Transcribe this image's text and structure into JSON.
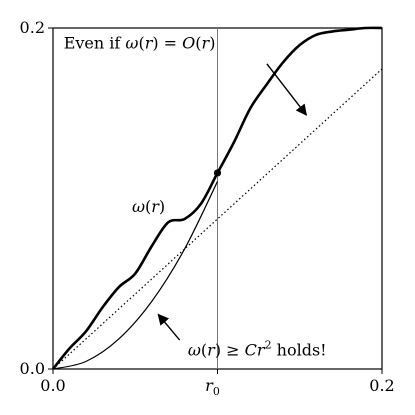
{
  "chart_data": {
    "type": "line",
    "xlim": [
      0.0,
      0.2
    ],
    "ylim": [
      0.0,
      0.2
    ],
    "grid": false,
    "x_ticks": [
      {
        "value": 0.0,
        "label": "0.0"
      },
      {
        "value": 0.2,
        "label": "0.2"
      }
    ],
    "x_marker": {
      "value": 0.1,
      "label": "r",
      "subscript": "0"
    },
    "y_ticks": [
      {
        "value": 0.0,
        "label": "0.0"
      },
      {
        "value": 0.2,
        "label": "0.2"
      }
    ],
    "series": [
      {
        "style": "thick",
        "x": [
          0,
          0.01,
          0.02,
          0.03,
          0.04,
          0.05,
          0.06,
          0.07,
          0.08,
          0.09,
          0.1,
          0.11,
          0.12,
          0.13,
          0.14,
          0.15,
          0.16,
          0.17,
          0.18,
          0.19,
          0.2
        ],
        "y": [
          0,
          0.012,
          0.022,
          0.036,
          0.048,
          0.056,
          0.072,
          0.086,
          0.088,
          0.097,
          0.115,
          0.133,
          0.153,
          0.167,
          0.18,
          0.19,
          0.196,
          0.198,
          0.199,
          0.2,
          0.2
        ]
      },
      {
        "style": "thin",
        "x": [
          0,
          0.02,
          0.04,
          0.06,
          0.08,
          0.1
        ],
        "y": [
          0,
          0.0044,
          0.0176,
          0.0396,
          0.0704,
          0.11
        ]
      },
      {
        "style": "dotted",
        "x": [
          0,
          0.2
        ],
        "y": [
          0,
          0.176
        ]
      }
    ],
    "point": {
      "x": 0.1,
      "y": 0.115
    },
    "annotations": {
      "top": {
        "prefix": "Even if ",
        "omega": "ω",
        "r": "r",
        "eq": " = ",
        "big_o": "O",
        "suffix": ")",
        "text_x": 0.0065,
        "text_y": 0.188,
        "arrow_from": [
          0.13,
          0.179
        ],
        "arrow_to": [
          0.154,
          0.149
        ]
      },
      "middle": {
        "omega": "ω",
        "r": "r",
        "text_x": 0.048,
        "text_y": 0.092
      },
      "bottom": {
        "omega": "ω",
        "r": "r",
        "geq": " ≥ ",
        "C": "C",
        "r2": "r",
        "sup": "2",
        "suffix": " holds!",
        "text_x": 0.082,
        "text_y": 0.008,
        "arrow_from": [
          0.077,
          0.017
        ],
        "arrow_to": [
          0.064,
          0.032
        ]
      }
    }
  }
}
